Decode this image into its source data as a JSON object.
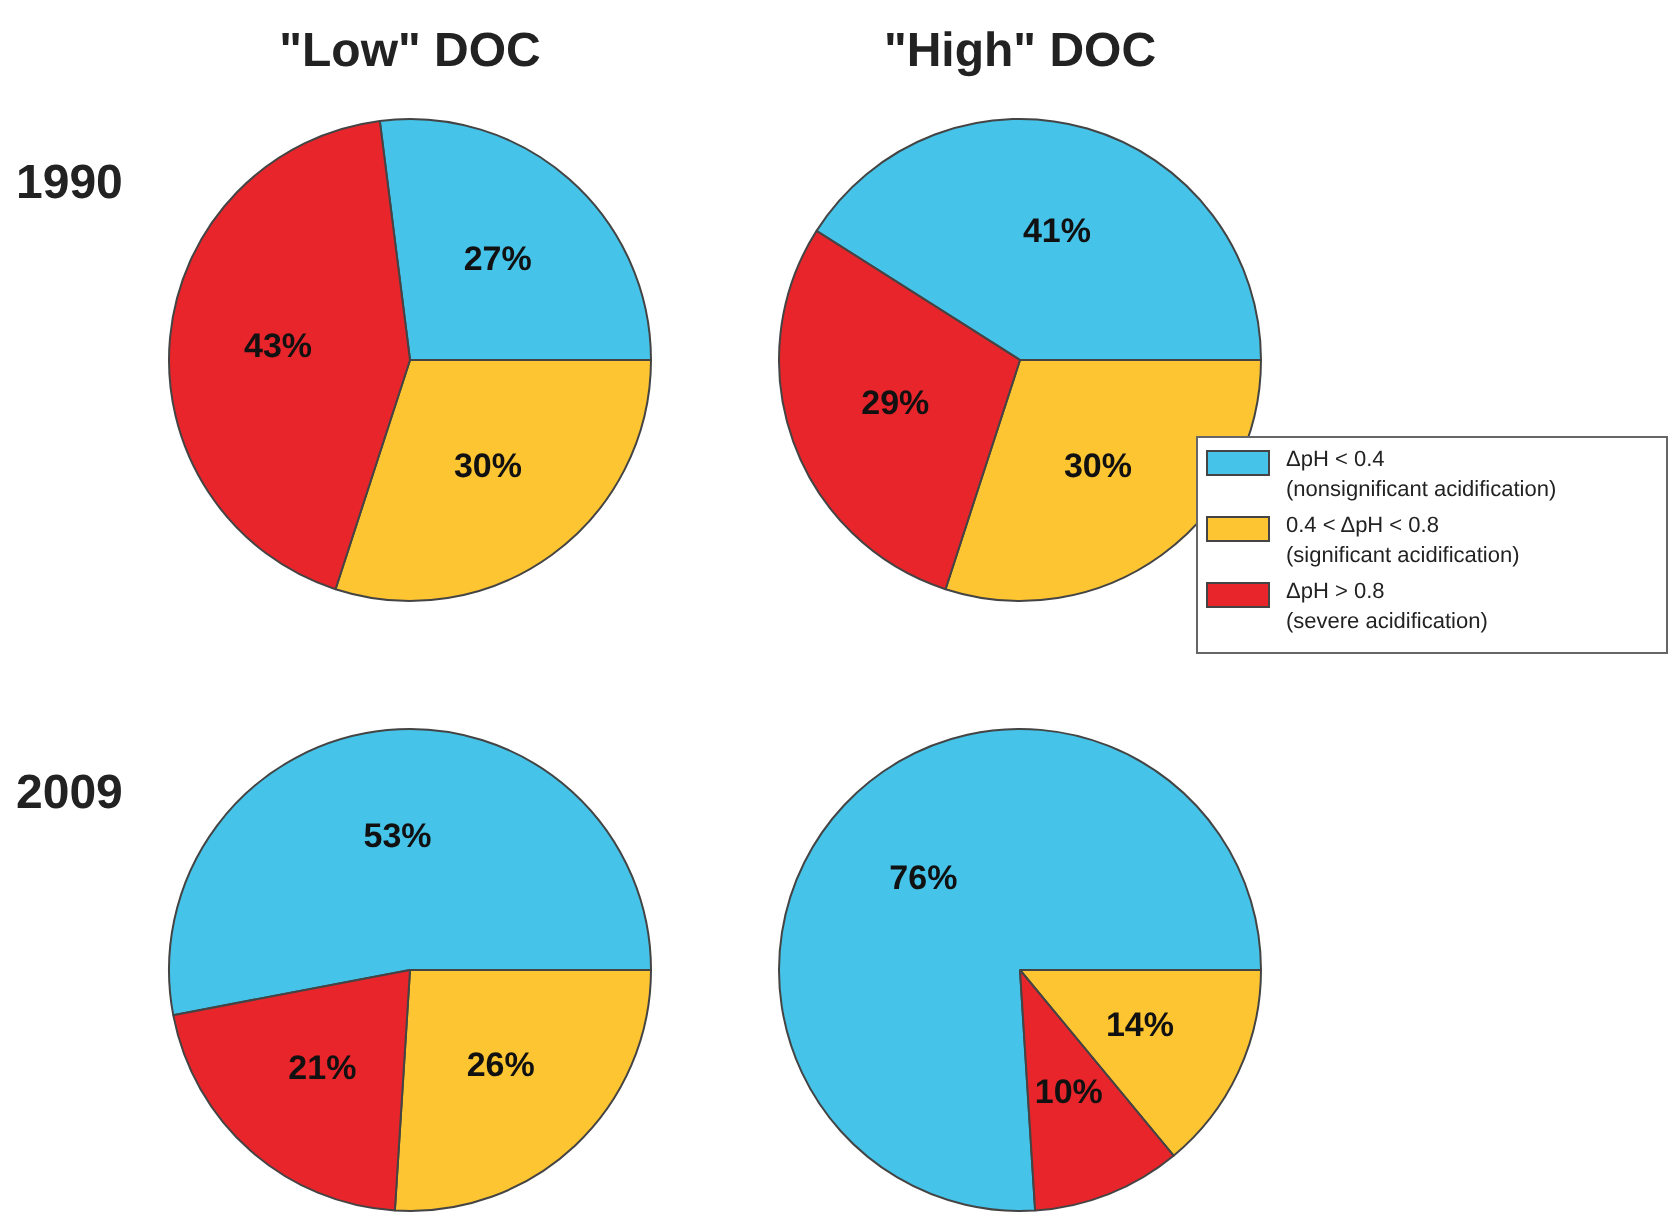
{
  "chart_data": [
    {
      "type": "pie",
      "title": "\"Low\" DOC",
      "annotations": [
        "1990"
      ],
      "categories": [
        null,
        null,
        null
      ],
      "values": [
        27,
        30,
        43
      ],
      "value_labels": [
        "27%",
        "30%",
        "43%"
      ],
      "colors": [
        "#45c3e8",
        "#fdc532",
        "#e8252b"
      ]
    },
    {
      "type": "pie",
      "title": "\"High\" DOC",
      "legend": "right",
      "categories": [
        "ΔpH < 0.4\n(nonsignificant acidification)",
        "0.4 <  ΔpH < 0.8\n(significant acidification)",
        "ΔpH > 0.8\n(severe acidification)"
      ],
      "values": [
        41,
        30,
        29
      ],
      "value_labels": [
        "41%",
        "30%",
        "29%"
      ],
      "colors": [
        "#45c3e8",
        "#fdc532",
        "#e8252b"
      ]
    },
    {
      "type": "pie",
      "annotations": [
        "2009"
      ],
      "categories": [
        null,
        null,
        null
      ],
      "values": [
        53,
        26,
        21
      ],
      "value_labels": [
        "53%",
        "26%",
        "21%"
      ],
      "colors": [
        "#45c3e8",
        "#fdc532",
        "#e8252b"
      ]
    },
    {
      "type": "pie",
      "categories": [
        null,
        null,
        null
      ],
      "values": [
        76,
        14,
        10
      ],
      "value_labels": [
        "76%",
        "14%",
        "10%"
      ],
      "colors": [
        "#45c3e8",
        "#fdc532",
        "#e8252b"
      ]
    }
  ]
}
